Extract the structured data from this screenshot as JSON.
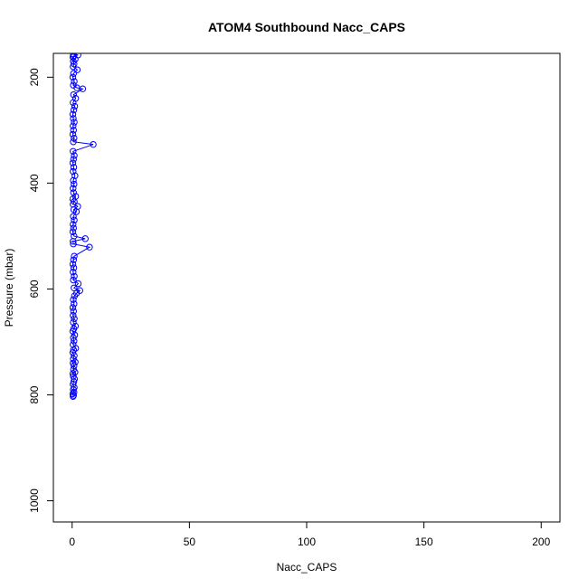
{
  "chart_data": {
    "type": "scatter",
    "title": "ATOM4 Southbound Nacc_CAPS",
    "xlabel": "Nacc_CAPS",
    "ylabel": "Pressure (mbar)",
    "xlim": [
      -8,
      208
    ],
    "ylim": [
      1040,
      155
    ],
    "y_reversed": true,
    "x_ticks": [
      0,
      50,
      100,
      150,
      200
    ],
    "x_tick_labels": [
      "0",
      "50",
      "100",
      "150",
      "200"
    ],
    "y_ticks": [
      200,
      400,
      600,
      800,
      1000
    ],
    "y_tick_labels": [
      "200",
      "400",
      "600",
      "800",
      "1000"
    ],
    "grid": false,
    "legend": "none",
    "series": [
      {
        "color": "#0000ff",
        "marker": "open-circle",
        "line": true,
        "points": [
          [
            0.4,
            803
          ],
          [
            0.6,
            801
          ],
          [
            0.3,
            798
          ],
          [
            0.8,
            795
          ],
          [
            0.5,
            790
          ],
          [
            0.9,
            786
          ],
          [
            0.4,
            780
          ],
          [
            0.7,
            775
          ],
          [
            1.0,
            770
          ],
          [
            0.5,
            765
          ],
          [
            0.3,
            760
          ],
          [
            1.2,
            757
          ],
          [
            0.6,
            752
          ],
          [
            0.8,
            745
          ],
          [
            0.4,
            740
          ],
          [
            1.3,
            738
          ],
          [
            0.5,
            732
          ],
          [
            0.9,
            726
          ],
          [
            0.3,
            720
          ],
          [
            0.6,
            715
          ],
          [
            1.5,
            712
          ],
          [
            0.4,
            705
          ],
          [
            0.8,
            698
          ],
          [
            0.5,
            692
          ],
          [
            1.1,
            687
          ],
          [
            0.3,
            680
          ],
          [
            0.7,
            675
          ],
          [
            1.4,
            670
          ],
          [
            0.5,
            663
          ],
          [
            0.9,
            656
          ],
          [
            0.4,
            650
          ],
          [
            0.6,
            642
          ],
          [
            0.3,
            635
          ],
          [
            0.8,
            628
          ],
          [
            0.5,
            620
          ],
          [
            1.0,
            613
          ],
          [
            1.9,
            608
          ],
          [
            3.3,
            603
          ],
          [
            0.8,
            598
          ],
          [
            2.6,
            590
          ],
          [
            0.5,
            583
          ],
          [
            0.9,
            576
          ],
          [
            0.4,
            568
          ],
          [
            0.7,
            560
          ],
          [
            0.3,
            553
          ],
          [
            0.6,
            545
          ],
          [
            0.9,
            538
          ],
          [
            7.4,
            521
          ],
          [
            0.5,
            515
          ],
          [
            0.4,
            510
          ],
          [
            5.6,
            505
          ],
          [
            0.8,
            500
          ],
          [
            0.3,
            492
          ],
          [
            0.6,
            485
          ],
          [
            0.4,
            478
          ],
          [
            0.9,
            470
          ],
          [
            0.5,
            463
          ],
          [
            1.8,
            454
          ],
          [
            0.7,
            450
          ],
          [
            2.4,
            444
          ],
          [
            0.4,
            440
          ],
          [
            0.9,
            435
          ],
          [
            0.3,
            430
          ],
          [
            1.5,
            425
          ],
          [
            0.6,
            418
          ],
          [
            0.4,
            410
          ],
          [
            0.8,
            402
          ],
          [
            0.5,
            395
          ],
          [
            1.2,
            386
          ],
          [
            0.4,
            378
          ],
          [
            0.7,
            370
          ],
          [
            0.3,
            362
          ],
          [
            0.6,
            355
          ],
          [
            0.9,
            348
          ],
          [
            0.4,
            340
          ],
          [
            9.0,
            327
          ],
          [
            0.5,
            322
          ],
          [
            0.8,
            315
          ],
          [
            0.3,
            308
          ],
          [
            0.6,
            300
          ],
          [
            0.4,
            292
          ],
          [
            0.9,
            285
          ],
          [
            0.5,
            278
          ],
          [
            0.3,
            270
          ],
          [
            0.7,
            262
          ],
          [
            1.1,
            255
          ],
          [
            0.4,
            248
          ],
          [
            1.5,
            240
          ],
          [
            0.6,
            233
          ],
          [
            4.5,
            222
          ],
          [
            2.0,
            220
          ],
          [
            0.5,
            215
          ],
          [
            0.9,
            208
          ],
          [
            0.3,
            200
          ],
          [
            0.6,
            193
          ],
          [
            2.2,
            186
          ],
          [
            0.4,
            180
          ],
          [
            0.8,
            175
          ],
          [
            0.5,
            170
          ],
          [
            1.3,
            166
          ],
          [
            0.3,
            162
          ],
          [
            0.7,
            160
          ],
          [
            2.5,
            158
          ],
          [
            0.5,
            156
          ]
        ]
      }
    ]
  }
}
